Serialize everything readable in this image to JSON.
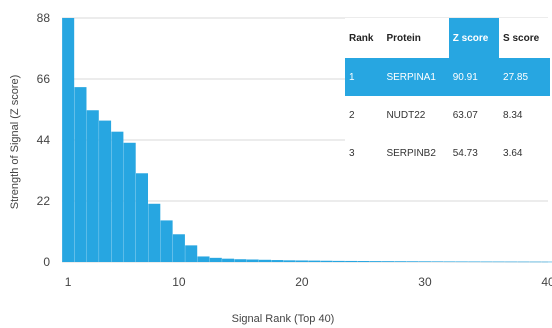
{
  "chart_data": {
    "type": "bar",
    "title": "",
    "xlabel": "Signal Rank (Top 40)",
    "ylabel": "Strength of Signal (Z score)",
    "x": [
      1,
      2,
      3,
      4,
      5,
      6,
      7,
      8,
      9,
      10,
      11,
      12,
      13,
      14,
      15,
      16,
      17,
      18,
      19,
      20,
      21,
      22,
      23,
      24,
      25,
      26,
      27,
      28,
      29,
      30,
      31,
      32,
      33,
      34,
      35,
      36,
      37,
      38,
      39,
      40
    ],
    "values": [
      90.91,
      63.07,
      54.73,
      51,
      47,
      43,
      32,
      21,
      15,
      10,
      6,
      2,
      1.5,
      1.2,
      1,
      0.9,
      0.8,
      0.7,
      0.6,
      0.55,
      0.5,
      0.45,
      0.4,
      0.38,
      0.35,
      0.32,
      0.3,
      0.28,
      0.26,
      0.24,
      0.22,
      0.2,
      0.19,
      0.18,
      0.17,
      0.16,
      0.15,
      0.14,
      0.13,
      0.12
    ],
    "xticks": [
      1,
      10,
      20,
      30,
      40
    ],
    "yticks": [
      0,
      22,
      44,
      66,
      88
    ],
    "xlim": [
      0.5,
      40
    ],
    "ylim": [
      0,
      88
    ],
    "grid": true,
    "bar_color": "#27a6e1"
  },
  "table": {
    "headers": [
      "Rank",
      "Protein",
      "Z score",
      "S score"
    ],
    "rows": [
      [
        "1",
        "SERPINA1",
        "90.91",
        "27.85"
      ],
      [
        "2",
        "NUDT22",
        "63.07",
        "8.34"
      ],
      [
        "3",
        "SERPINB2",
        "54.73",
        "3.64"
      ]
    ],
    "highlight_color": "#27a6e1"
  }
}
